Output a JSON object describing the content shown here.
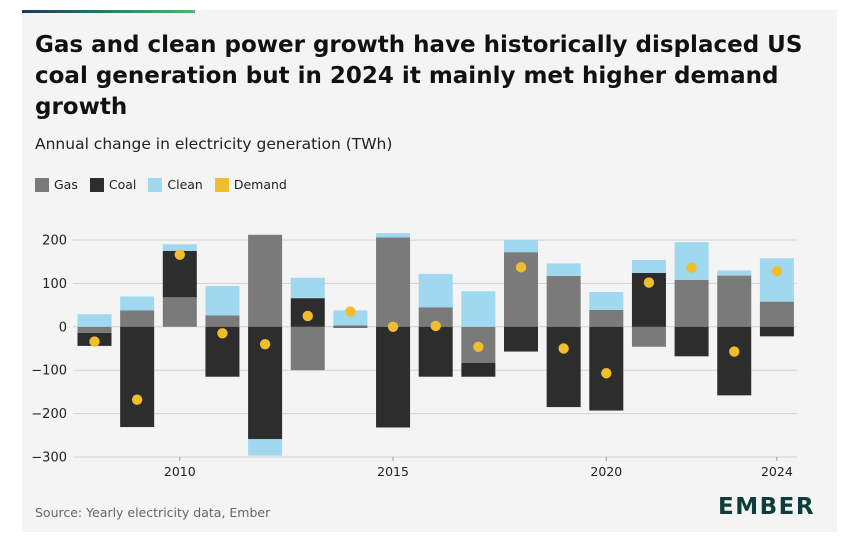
{
  "chart_data": {
    "type": "bar",
    "title": "Gas and clean power growth have historically displaced US coal generation but in 2024 it mainly met higher demand growth",
    "subtitle": "Annual change in electricity generation (TWh)",
    "ylabel": "TWh",
    "ylim": [
      -300,
      200
    ],
    "yticks": [
      "200",
      "100",
      "0",
      "−100",
      "−200",
      "−300"
    ],
    "ytick_values": [
      200,
      100,
      0,
      -100,
      -200,
      -300
    ],
    "x": [
      2008,
      2009,
      2010,
      2011,
      2012,
      2013,
      2014,
      2015,
      2016,
      2017,
      2018,
      2019,
      2020,
      2021,
      2022,
      2023,
      2024
    ],
    "xtick_labels": [
      "2010",
      "2015",
      "2020",
      "2024"
    ],
    "xtick_years": [
      2010,
      2015,
      2020,
      2024
    ],
    "series": [
      {
        "name": "Gas",
        "color": "#7a7a7a",
        "values": [
          -14,
          38,
          68,
          26,
          212,
          -100,
          3,
          206,
          45,
          -83,
          172,
          117,
          39,
          -46,
          108,
          118,
          58
        ]
      },
      {
        "name": "Coal",
        "color": "#2d2d2d",
        "values": [
          -30,
          -231,
          107,
          -115,
          -259,
          66,
          -2,
          -232,
          -115,
          -32,
          -57,
          -185,
          -193,
          124,
          -68,
          -158,
          -22
        ]
      },
      {
        "name": "Clean",
        "color": "#a0d8f0",
        "values": [
          29,
          32,
          15,
          68,
          -38,
          47,
          35,
          10,
          77,
          82,
          28,
          29,
          41,
          30,
          87,
          12,
          100
        ]
      },
      {
        "name": "Demand",
        "color": "#f0be2c",
        "values": [
          -34,
          -168,
          166,
          -15,
          -40,
          25,
          35,
          0,
          2,
          -46,
          137,
          -50,
          -107,
          102,
          136,
          -57,
          128
        ]
      }
    ],
    "legend": [
      "Gas",
      "Coal",
      "Clean",
      "Demand"
    ],
    "legend_position": "top-left",
    "grid": true
  },
  "source_label": "Source: Yearly electricity data, Ember",
  "brand": "EMBER"
}
